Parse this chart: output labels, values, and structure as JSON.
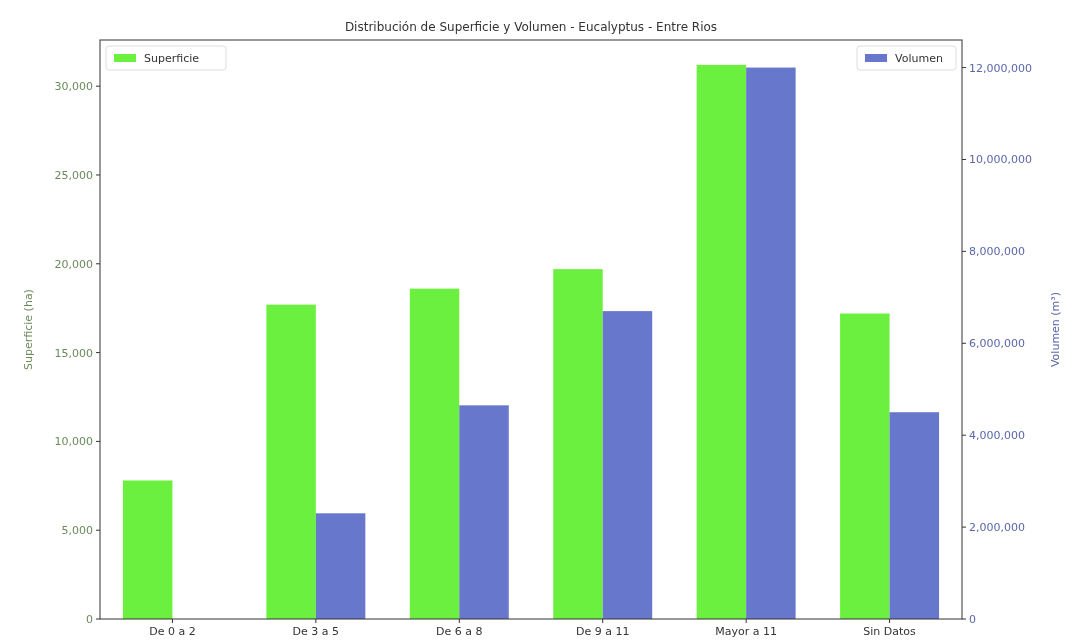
{
  "chart_data": {
    "type": "bar",
    "title": "Distribución de Superficie y Volumen - Eucalyptus - Entre Rios",
    "categories": [
      "De 0 a 2",
      "De 3 a 5",
      "De 6 a 8",
      "De 9 a 11",
      "Mayor a 11",
      "Sin Datos"
    ],
    "ylabel": "Superficie (ha)",
    "y2label": "Volumen (m³)",
    "ylim": [
      0,
      32600
    ],
    "yticks": [
      {
        "value": 0,
        "label": "0"
      },
      {
        "value": 5000,
        "label": "5,000"
      },
      {
        "value": 10000,
        "label": "10,000"
      },
      {
        "value": 15000,
        "label": "15,000"
      },
      {
        "value": 20000,
        "label": "20,000"
      },
      {
        "value": 25000,
        "label": "25,000"
      },
      {
        "value": 30000,
        "label": "30,000"
      }
    ],
    "y2lim": [
      0,
      12600000
    ],
    "y2ticks": [
      {
        "value": 0,
        "label": "0"
      },
      {
        "value": 2000000,
        "label": "2,000,000"
      },
      {
        "value": 4000000,
        "label": "4,000,000"
      },
      {
        "value": 6000000,
        "label": "6,000,000"
      },
      {
        "value": 8000000,
        "label": "8,000,000"
      },
      {
        "value": 10000000,
        "label": "10,000,000"
      },
      {
        "value": 12000000,
        "label": "12,000,000"
      }
    ],
    "series": [
      {
        "name": "Superficie",
        "color": "#6cf040",
        "values": [
          7800,
          17700,
          18600,
          19700,
          31200,
          17200
        ]
      },
      {
        "name": "Volumen",
        "color": "#6677cc",
        "axis": "y2",
        "values": [
          0,
          2300000,
          4650000,
          6700000,
          12000000,
          4500000
        ]
      }
    ],
    "legend": "top left",
    "grid": false
  }
}
